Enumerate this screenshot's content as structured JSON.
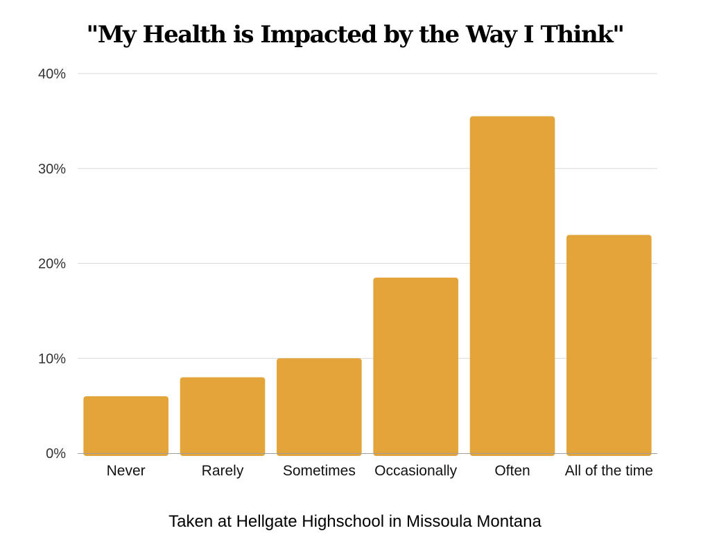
{
  "chart_data": {
    "type": "bar",
    "title": "\"My Health is Impacted by the Way I Think\"",
    "subtitle": "Taken at Hellgate Highschool in Missoula Montana",
    "xlabel": "",
    "ylabel": "",
    "categories": [
      "Never",
      "Rarely",
      "Sometimes",
      "Occasionally",
      "Often",
      "All of the time"
    ],
    "values": [
      6,
      8,
      10,
      18.5,
      35.5,
      23
    ],
    "ylim": [
      0,
      40
    ],
    "yticks": [
      0,
      10,
      20,
      30,
      40
    ],
    "ytick_labels": [
      "0%",
      "10%",
      "20%",
      "30%",
      "40%"
    ],
    "grid": true,
    "legend": "none",
    "colors": {
      "bar": "#E3A53A",
      "grid": "#D9D9D9",
      "axis": "#9E9E9E"
    }
  }
}
